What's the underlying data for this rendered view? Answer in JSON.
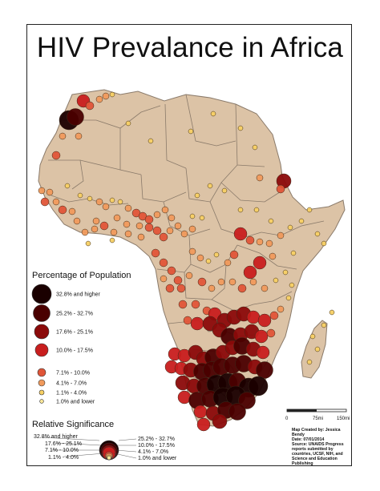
{
  "title": "HIV Prevalance in Africa",
  "colors": {
    "land": "#dcc3a6",
    "border": "#8a7a6a",
    "ocean": "#ffffff",
    "class_colors": [
      "#1a0000",
      "#4a0000",
      "#8b0a0a",
      "#c81e1e",
      "#e05538",
      "#f09a5c",
      "#f7d064",
      "#fbe89a"
    ]
  },
  "legend": {
    "title": "Percentage of Population",
    "classes": [
      {
        "label": "32.8% and higher",
        "color": "#1a0000"
      },
      {
        "label": "25.2% - 32.7%",
        "color": "#4a0000"
      },
      {
        "label": "17.6% - 25.1%",
        "color": "#8b0a0a"
      },
      {
        "label": "10.0% - 17.5%",
        "color": "#c81e1e"
      },
      {
        "label": "7.1% - 10.0%",
        "color": "#e05538"
      },
      {
        "label": "4.1% - 7.0%",
        "color": "#f09a5c"
      },
      {
        "label": "1.1% - 4.0%",
        "color": "#f7d064"
      },
      {
        "label": "1.0% and lower",
        "color": "#fbe89a"
      }
    ]
  },
  "relative_legend": {
    "title": "Relative Significance",
    "left_labels": [
      "32.8% and higher",
      "17.6% - 25.1%",
      "7.1% - 10.0%",
      "1.1% - 4.0%"
    ],
    "right_labels": [
      "25.2% - 32.7%",
      "10.0% - 17.5%",
      "4.1% - 7.0%",
      "1.0% and lower"
    ]
  },
  "scale_bar": {
    "labels": [
      "0",
      "75mi",
      "150mi"
    ]
  },
  "credits": {
    "line1": "Map Created by: Jessica Bendy",
    "line2": "Date: 07/01/2014",
    "line3": "Source: UNAIDS Progress reports submitted by countries, UCSF, NIH, and Science and Education Publishing"
  }
}
